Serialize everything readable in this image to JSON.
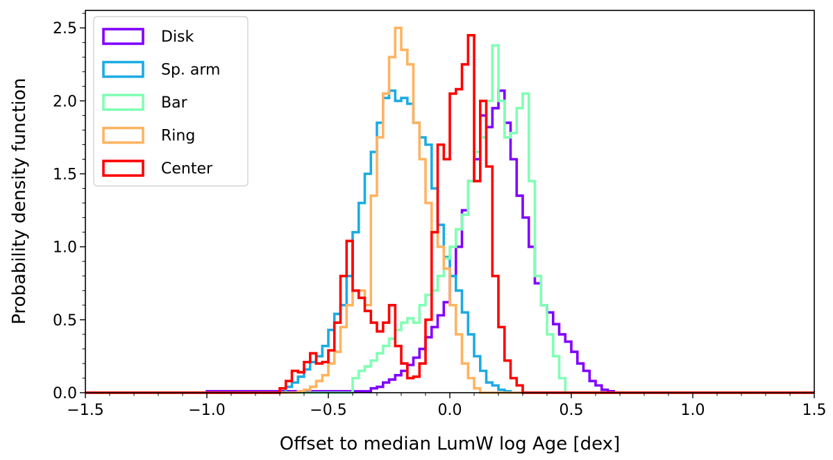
{
  "chart_data": {
    "type": "histogram-step",
    "xlabel": "Offset to median LumW log Age [dex]",
    "ylabel": "Probability density function",
    "xlim": [
      -1.5,
      1.5
    ],
    "ylim": [
      0.0,
      2.62
    ],
    "bin_width": 0.025,
    "x_ticks": [
      {
        "value": -1.5,
        "label": "−1.5"
      },
      {
        "value": -1.0,
        "label": "−1.0"
      },
      {
        "value": -0.5,
        "label": "−0.5"
      },
      {
        "value": 0.0,
        "label": "0.0"
      },
      {
        "value": 0.5,
        "label": "0.5"
      },
      {
        "value": 1.0,
        "label": "1.0"
      },
      {
        "value": 1.5,
        "label": "1.5"
      }
    ],
    "y_ticks": [
      {
        "value": 0.0,
        "label": "0.0"
      },
      {
        "value": 0.5,
        "label": "0.5"
      },
      {
        "value": 1.0,
        "label": "1.0"
      },
      {
        "value": 1.5,
        "label": "1.5"
      },
      {
        "value": 2.0,
        "label": "2.0"
      },
      {
        "value": 2.5,
        "label": "2.5"
      }
    ],
    "legend_position": "top-left",
    "series": [
      {
        "name": "Disk",
        "color": "#8000ff",
        "x_start": -1.0,
        "values": [
          0.01,
          0.01,
          0.01,
          0.01,
          0.01,
          0.01,
          0.01,
          0.01,
          0.01,
          0.01,
          0.01,
          0.01,
          0.01,
          0.01,
          0.01,
          0.01,
          0.01,
          0.01,
          0.01,
          0.01,
          0.01,
          0.01,
          0.01,
          0.01,
          0.01,
          0.01,
          0.01,
          0.03,
          0.04,
          0.07,
          0.09,
          0.12,
          0.15,
          0.19,
          0.24,
          0.3,
          0.38,
          0.45,
          0.53,
          0.62,
          0.8,
          1.0,
          1.25,
          1.45,
          1.6,
          1.9,
          1.82,
          1.95,
          2.07,
          1.85,
          1.6,
          1.35,
          1.2,
          1.0,
          0.75,
          0.6,
          0.55,
          0.47,
          0.4,
          0.35,
          0.28,
          0.2,
          0.15,
          0.08,
          0.05,
          0.02,
          0.01
        ]
      },
      {
        "name": "Sp. arm",
        "color": "#1cabe2",
        "x_start": -0.675,
        "values": [
          0.04,
          0.07,
          0.11,
          0.16,
          0.21,
          0.25,
          0.32,
          0.43,
          0.54,
          0.6,
          0.8,
          1.1,
          1.3,
          1.5,
          1.65,
          1.85,
          2.02,
          2.07,
          2.0,
          2.02,
          1.98,
          1.85,
          1.75,
          1.7,
          1.4,
          1.15,
          0.93,
          0.8,
          0.7,
          0.55,
          0.4,
          0.25,
          0.15,
          0.07,
          0.05,
          0.02,
          0.01
        ]
      },
      {
        "name": "Bar",
        "color": "#80ffb4",
        "x_start": -0.4,
        "values": [
          0.1,
          0.15,
          0.18,
          0.22,
          0.27,
          0.32,
          0.37,
          0.43,
          0.48,
          0.51,
          0.48,
          0.6,
          0.67,
          0.7,
          0.8,
          0.92,
          1.0,
          1.12,
          1.22,
          1.45,
          1.65,
          1.75,
          2.0,
          2.38,
          2.0,
          1.75,
          1.78,
          1.95,
          2.05,
          1.45,
          0.8,
          0.6,
          0.4,
          0.25,
          0.1
        ]
      },
      {
        "name": "Ring",
        "color": "#ffb360",
        "x_start": -0.625,
        "values": [
          0.01,
          0.02,
          0.04,
          0.08,
          0.12,
          0.2,
          0.28,
          0.45,
          0.6,
          0.7,
          0.7,
          0.6,
          1.35,
          1.75,
          2.05,
          2.3,
          2.5,
          2.35,
          2.25,
          1.85,
          1.6,
          1.3,
          1.1,
          1.0,
          0.85,
          0.6,
          0.4,
          0.2,
          0.1,
          0.03
        ]
      },
      {
        "name": "Center",
        "color": "#ff0000",
        "x_start": -0.7,
        "values": [
          0.03,
          0.08,
          0.15,
          0.14,
          0.21,
          0.27,
          0.2,
          0.21,
          0.29,
          0.48,
          0.8,
          1.04,
          0.7,
          0.65,
          0.56,
          0.48,
          0.42,
          0.48,
          0.6,
          0.32,
          0.2,
          0.1,
          0.11,
          0.2,
          0.5,
          1.1,
          1.7,
          1.6,
          2.05,
          2.08,
          2.25,
          2.45,
          1.45,
          2.0,
          1.55,
          0.8,
          0.45,
          0.22,
          0.1,
          0.05
        ]
      }
    ]
  }
}
